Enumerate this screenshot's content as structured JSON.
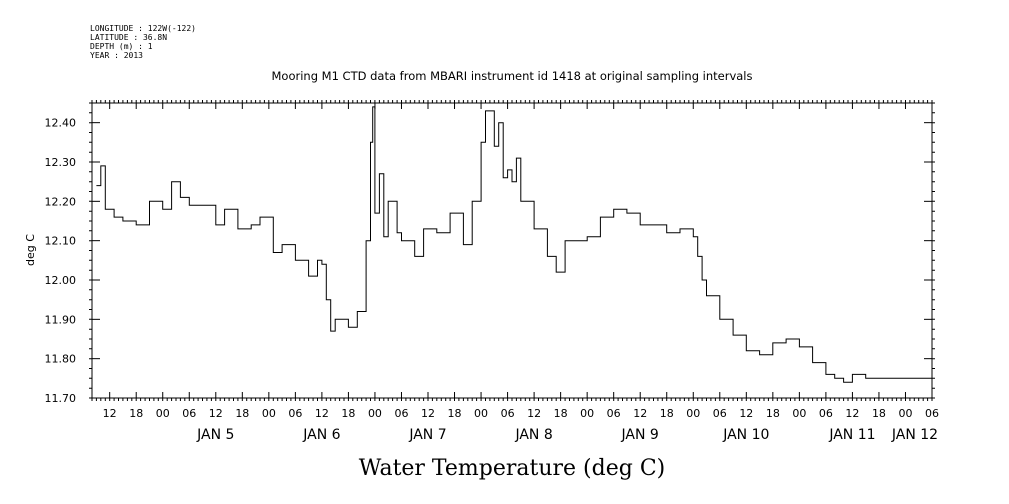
{
  "header": {
    "meta_lines": [
      "LONGITUDE : 122W(-122)",
      "LATITUDE : 36.8N",
      "DEPTH (m) : 1",
      "YEAR : 2013"
    ],
    "title": "Mooring M1 CTD data from MBARI instrument id 1418 at original sampling intervals"
  },
  "chart_data": {
    "type": "line",
    "title": "Mooring M1 CTD data from MBARI instrument id 1418 at original sampling intervals",
    "xlabel": "Water Temperature (deg C)",
    "ylabel": "deg C",
    "ylim": [
      11.7,
      12.45
    ],
    "yticks": [
      11.7,
      11.8,
      11.9,
      12.0,
      12.1,
      12.2,
      12.3,
      12.4
    ],
    "xlim": [
      "2013-01-04 08:00",
      "2013-01-12 06:00"
    ],
    "x_tick_hour_labels": [
      "12",
      "18",
      "00",
      "06",
      "12",
      "18",
      "00",
      "06",
      "12",
      "18",
      "00",
      "06",
      "12",
      "18",
      "00",
      "06",
      "12",
      "18",
      "00",
      "06",
      "12",
      "18",
      "00",
      "06",
      "12",
      "18",
      "00",
      "06",
      "12",
      "18",
      "00",
      "06"
    ],
    "day_labels": [
      {
        "label": "JAN 5",
        "date": "2013-01-05"
      },
      {
        "label": "JAN 6",
        "date": "2013-01-06"
      },
      {
        "label": "JAN 7",
        "date": "2013-01-07"
      },
      {
        "label": "JAN 8",
        "date": "2013-01-08"
      },
      {
        "label": "JAN 9",
        "date": "2013-01-09"
      },
      {
        "label": "JAN 10",
        "date": "2013-01-10"
      },
      {
        "label": "JAN 11",
        "date": "2013-01-11"
      },
      {
        "label": "JAN 12",
        "date": "2013-01-12"
      }
    ],
    "grid": false,
    "series": [
      {
        "color": "#000000",
        "points": [
          [
            "2013-01-04 09:00",
            12.24
          ],
          [
            "2013-01-04 10:00",
            12.29
          ],
          [
            "2013-01-04 11:00",
            12.18
          ],
          [
            "2013-01-04 13:00",
            12.16
          ],
          [
            "2013-01-04 15:00",
            12.15
          ],
          [
            "2013-01-04 18:00",
            12.14
          ],
          [
            "2013-01-04 21:00",
            12.2
          ],
          [
            "2013-01-05 00:00",
            12.18
          ],
          [
            "2013-01-05 02:00",
            12.25
          ],
          [
            "2013-01-05 04:00",
            12.21
          ],
          [
            "2013-01-05 06:00",
            12.19
          ],
          [
            "2013-01-05 09:00",
            12.19
          ],
          [
            "2013-01-05 12:00",
            12.14
          ],
          [
            "2013-01-05 14:00",
            12.18
          ],
          [
            "2013-01-05 17:00",
            12.13
          ],
          [
            "2013-01-05 20:00",
            12.14
          ],
          [
            "2013-01-05 22:00",
            12.16
          ],
          [
            "2013-01-06 00:00",
            12.16
          ],
          [
            "2013-01-06 01:00",
            12.07
          ],
          [
            "2013-01-06 03:00",
            12.09
          ],
          [
            "2013-01-06 06:00",
            12.05
          ],
          [
            "2013-01-06 09:00",
            12.01
          ],
          [
            "2013-01-06 11:00",
            12.05
          ],
          [
            "2013-01-06 12:00",
            12.04
          ],
          [
            "2013-01-06 13:00",
            11.95
          ],
          [
            "2013-01-06 14:00",
            11.87
          ],
          [
            "2013-01-06 15:00",
            11.9
          ],
          [
            "2013-01-06 18:00",
            11.88
          ],
          [
            "2013-01-06 20:00",
            11.92
          ],
          [
            "2013-01-06 22:00",
            12.1
          ],
          [
            "2013-01-06 23:00",
            12.35
          ],
          [
            "2013-01-06 23:30",
            12.44
          ],
          [
            "2013-01-07 00:00",
            12.17
          ],
          [
            "2013-01-07 01:00",
            12.27
          ],
          [
            "2013-01-07 02:00",
            12.11
          ],
          [
            "2013-01-07 03:00",
            12.2
          ],
          [
            "2013-01-07 05:00",
            12.12
          ],
          [
            "2013-01-07 06:00",
            12.1
          ],
          [
            "2013-01-07 09:00",
            12.06
          ],
          [
            "2013-01-07 11:00",
            12.13
          ],
          [
            "2013-01-07 14:00",
            12.12
          ],
          [
            "2013-01-07 17:00",
            12.17
          ],
          [
            "2013-01-07 20:00",
            12.09
          ],
          [
            "2013-01-07 22:00",
            12.2
          ],
          [
            "2013-01-08 00:00",
            12.35
          ],
          [
            "2013-01-08 01:00",
            12.43
          ],
          [
            "2013-01-08 03:00",
            12.34
          ],
          [
            "2013-01-08 04:00",
            12.4
          ],
          [
            "2013-01-08 05:00",
            12.26
          ],
          [
            "2013-01-08 06:00",
            12.28
          ],
          [
            "2013-01-08 07:00",
            12.25
          ],
          [
            "2013-01-08 08:00",
            12.31
          ],
          [
            "2013-01-08 09:00",
            12.2
          ],
          [
            "2013-01-08 10:00",
            12.2
          ],
          [
            "2013-01-08 12:00",
            12.13
          ],
          [
            "2013-01-08 15:00",
            12.06
          ],
          [
            "2013-01-08 17:00",
            12.02
          ],
          [
            "2013-01-08 19:00",
            12.1
          ],
          [
            "2013-01-08 22:00",
            12.1
          ],
          [
            "2013-01-09 00:00",
            12.11
          ],
          [
            "2013-01-09 03:00",
            12.16
          ],
          [
            "2013-01-09 06:00",
            12.18
          ],
          [
            "2013-01-09 09:00",
            12.17
          ],
          [
            "2013-01-09 12:00",
            12.14
          ],
          [
            "2013-01-09 15:00",
            12.14
          ],
          [
            "2013-01-09 18:00",
            12.12
          ],
          [
            "2013-01-09 21:00",
            12.13
          ],
          [
            "2013-01-10 00:00",
            12.11
          ],
          [
            "2013-01-10 01:00",
            12.06
          ],
          [
            "2013-01-10 02:00",
            12.0
          ],
          [
            "2013-01-10 03:00",
            11.96
          ],
          [
            "2013-01-10 06:00",
            11.9
          ],
          [
            "2013-01-10 09:00",
            11.86
          ],
          [
            "2013-01-10 12:00",
            11.82
          ],
          [
            "2013-01-10 15:00",
            11.81
          ],
          [
            "2013-01-10 18:00",
            11.84
          ],
          [
            "2013-01-10 21:00",
            11.85
          ],
          [
            "2013-01-11 00:00",
            11.83
          ],
          [
            "2013-01-11 03:00",
            11.79
          ],
          [
            "2013-01-11 06:00",
            11.76
          ],
          [
            "2013-01-11 08:00",
            11.75
          ],
          [
            "2013-01-11 10:00",
            11.74
          ],
          [
            "2013-01-11 12:00",
            11.76
          ],
          [
            "2013-01-11 15:00",
            11.75
          ],
          [
            "2013-01-11 18:00",
            11.75
          ],
          [
            "2013-01-11 21:00",
            11.75
          ],
          [
            "2013-01-12 00:00",
            11.75
          ],
          [
            "2013-01-12 03:00",
            11.75
          ],
          [
            "2013-01-12 06:00",
            11.75
          ]
        ]
      }
    ]
  }
}
